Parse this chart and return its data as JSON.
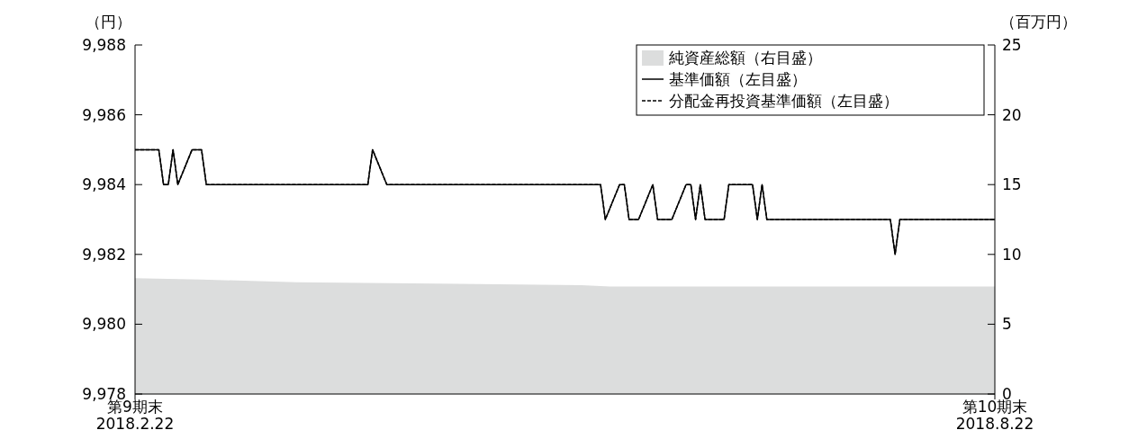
{
  "chart_data": {
    "type": "line",
    "ylabel": "（円）",
    "y2label": "（百万円）",
    "x": [
      "2018-02-22",
      "2018-02-27",
      "2018-02-28",
      "2018-03-01",
      "2018-03-02",
      "2018-03-03",
      "2018-03-06",
      "2018-03-08",
      "2018-03-09",
      "2018-04-12",
      "2018-04-13",
      "2018-04-16",
      "2018-05-31",
      "2018-06-01",
      "2018-06-04",
      "2018-06-05",
      "2018-06-06",
      "2018-06-08",
      "2018-06-11",
      "2018-06-12",
      "2018-06-15",
      "2018-06-18",
      "2018-06-19",
      "2018-06-20",
      "2018-06-21",
      "2018-06-22",
      "2018-06-26",
      "2018-06-27",
      "2018-07-02",
      "2018-07-03",
      "2018-07-04",
      "2018-07-05",
      "2018-07-31",
      "2018-08-01",
      "2018-08-02",
      "2018-08-22"
    ],
    "series": [
      {
        "name": "純資産総額（右目盛）",
        "type": "area",
        "axis": "y2",
        "color": "#dcdddd",
        "x": [
          "2018-02-22",
          "2018-03-08",
          "2018-03-28",
          "2018-05-27",
          "2018-06-02",
          "2018-08-22"
        ],
        "values": [
          8.3,
          8.2,
          8.0,
          7.8,
          7.7,
          7.7
        ]
      },
      {
        "name": "基準価額（左目盛）",
        "color": "#000000",
        "line_style": "solid",
        "values": [
          9985,
          9985,
          9984,
          9984,
          9985,
          9984,
          9985,
          9985,
          9984,
          9984,
          9985,
          9984,
          9984,
          9983,
          9984,
          9984,
          9983,
          9983,
          9984,
          9983,
          9983,
          9984,
          9984,
          9983,
          9984,
          9983,
          9983,
          9984,
          9984,
          9983,
          9984,
          9983,
          9983,
          9982,
          9983,
          9983
        ]
      },
      {
        "name": "分配金再投資基準価額（左目盛）",
        "color": "#000000",
        "line_style": "dashed",
        "values": [
          9985,
          9985,
          9984,
          9984,
          9985,
          9984,
          9985,
          9985,
          9984,
          9984,
          9985,
          9984,
          9984,
          9983,
          9984,
          9984,
          9983,
          9983,
          9984,
          9983,
          9983,
          9984,
          9984,
          9983,
          9984,
          9983,
          9983,
          9984,
          9984,
          9983,
          9984,
          9983,
          9983,
          9982,
          9983,
          9983
        ]
      }
    ],
    "xlim": [
      "2018-02-22",
      "2018-08-22"
    ],
    "xticks": [
      {
        "value": "2018-02-22",
        "label": "第9期末\n2018.2.22"
      },
      {
        "value": "2018-08-22",
        "label": "第10期末\n2018.8.22"
      }
    ],
    "ylim": [
      9978,
      9988
    ],
    "yticks": [
      {
        "value": 9978,
        "label": "9,978"
      },
      {
        "value": 9980,
        "label": "9,980"
      },
      {
        "value": 9982,
        "label": "9,982"
      },
      {
        "value": 9984,
        "label": "9,984"
      },
      {
        "value": 9986,
        "label": "9,986"
      },
      {
        "value": 9988,
        "label": "9,988"
      }
    ],
    "y2lim": [
      0,
      25
    ],
    "y2ticks": [
      0,
      5,
      10,
      15,
      20,
      25
    ],
    "grid": false,
    "legend": "top right"
  }
}
